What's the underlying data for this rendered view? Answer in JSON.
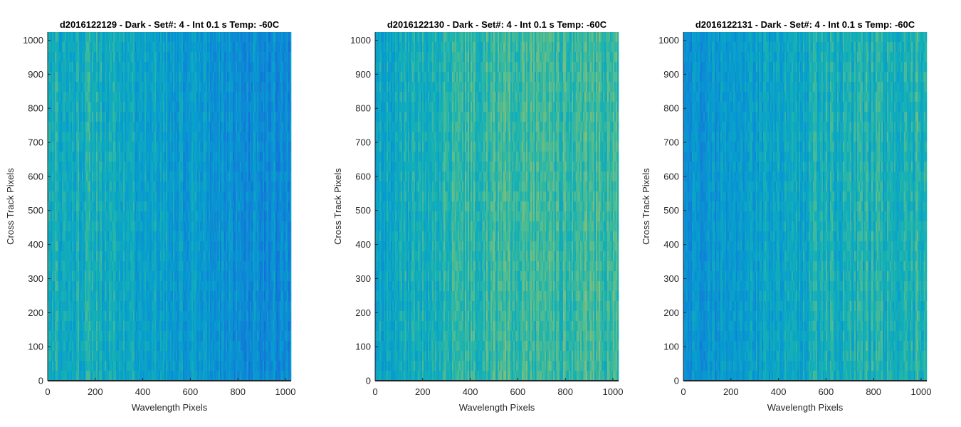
{
  "chart_data": [
    {
      "type": "heatmap",
      "title": "d2016122129 - Dark - Set#: 4 - Int 0.1 s Temp: -60C",
      "xlabel": "Wavelength Pixels",
      "ylabel": "Cross Track Pixels",
      "xlim": [
        0,
        1024
      ],
      "ylim": [
        0,
        1024
      ],
      "xticks": [
        0,
        200,
        400,
        600,
        800,
        1000
      ],
      "yticks": [
        0,
        100,
        200,
        300,
        400,
        500,
        600,
        700,
        800,
        900,
        1000
      ],
      "grid": false,
      "colormap": "parula",
      "intensity_profile": [
        {
          "x": 0,
          "level": 0.55
        },
        {
          "x": 200,
          "level": 0.56
        },
        {
          "x": 400,
          "level": 0.5
        },
        {
          "x": 600,
          "level": 0.45
        },
        {
          "x": 800,
          "level": 0.38
        },
        {
          "x": 1024,
          "level": 0.37
        }
      ]
    },
    {
      "type": "heatmap",
      "title": "d2016122130 - Dark - Set#: 4 - Int 0.1 s Temp: -60C",
      "xlabel": "Wavelength Pixels",
      "ylabel": "Cross Track Pixels",
      "xlim": [
        0,
        1024
      ],
      "ylim": [
        0,
        1024
      ],
      "xticks": [
        0,
        200,
        400,
        600,
        800,
        1000
      ],
      "yticks": [
        0,
        100,
        200,
        300,
        400,
        500,
        600,
        700,
        800,
        900,
        1000
      ],
      "grid": false,
      "colormap": "parula",
      "intensity_profile": [
        {
          "x": 0,
          "level": 0.5
        },
        {
          "x": 200,
          "level": 0.56
        },
        {
          "x": 400,
          "level": 0.62
        },
        {
          "x": 600,
          "level": 0.64
        },
        {
          "x": 800,
          "level": 0.63
        },
        {
          "x": 1024,
          "level": 0.65
        }
      ]
    },
    {
      "type": "heatmap",
      "title": "d2016122131 - Dark - Set#: 4 - Int 0.1 s Temp: -60C",
      "xlabel": "Wavelength Pixels",
      "ylabel": "Cross Track Pixels",
      "xlim": [
        0,
        1024
      ],
      "ylim": [
        0,
        1024
      ],
      "xticks": [
        0,
        200,
        400,
        600,
        800,
        1000
      ],
      "yticks": [
        0,
        100,
        200,
        300,
        400,
        500,
        600,
        700,
        800,
        900,
        1000
      ],
      "grid": false,
      "colormap": "parula",
      "intensity_profile": [
        {
          "x": 0,
          "level": 0.4
        },
        {
          "x": 200,
          "level": 0.44
        },
        {
          "x": 400,
          "level": 0.5
        },
        {
          "x": 600,
          "level": 0.56
        },
        {
          "x": 800,
          "level": 0.58
        },
        {
          "x": 1024,
          "level": 0.6
        }
      ]
    }
  ]
}
